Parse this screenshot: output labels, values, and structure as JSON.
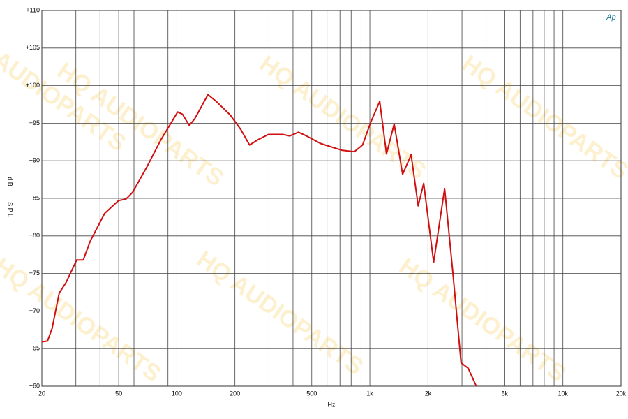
{
  "chart_data": {
    "type": "line",
    "log_x": true,
    "x_label": "Hz",
    "y_label_lines": [
      "d B",
      "S P L"
    ],
    "logo": "Ap",
    "watermark": "HQ AUDIOPARTS",
    "xlim": [
      20,
      20000
    ],
    "ylim": [
      60,
      110
    ],
    "xticks": [
      20,
      50,
      100,
      200,
      500,
      {
        "value": 1000,
        "label": "1k"
      },
      {
        "value": 2000,
        "label": "2k"
      },
      {
        "value": 5000,
        "label": "5k"
      },
      {
        "value": 10000,
        "label": "10k"
      },
      {
        "value": 20000,
        "label": "20k"
      }
    ],
    "xminor_ticks": [
      30,
      40,
      60,
      70,
      80,
      90,
      300,
      400,
      600,
      700,
      800,
      900,
      3000,
      4000,
      6000,
      7000,
      8000,
      9000
    ],
    "yticks": [
      {
        "value": 60,
        "label": "+60"
      },
      {
        "value": 65,
        "label": "+65"
      },
      {
        "value": 70,
        "label": "+70"
      },
      {
        "value": 75,
        "label": "+75"
      },
      {
        "value": 80,
        "label": "+80"
      },
      {
        "value": 85,
        "label": "+85"
      },
      {
        "value": 90,
        "label": "+90"
      },
      {
        "value": 95,
        "label": "+95"
      },
      {
        "value": 100,
        "label": "+100"
      },
      {
        "value": 105,
        "label": "+105"
      },
      {
        "value": 110,
        "label": "+110"
      }
    ],
    "grid": true,
    "series": [
      {
        "color": "#d01010",
        "x": [
          20,
          21.4,
          22.6,
          24.6,
          26.7,
          30.3,
          32.8,
          35.6,
          42.3,
          49.9,
          54.5,
          59,
          69.7,
          82.7,
          101,
          107,
          116,
          124,
          145,
          160,
          189,
          214,
          238,
          263,
          298,
          354,
          384,
          427,
          470,
          556,
          715,
          830,
          917,
          1010,
          1125,
          1220,
          1337,
          1478,
          1636,
          1780,
          1900,
          2140,
          2440,
          2690,
          2970,
          3230,
          3560
        ],
        "values": [
          65.9,
          66.0,
          67.7,
          72.4,
          73.8,
          76.8,
          76.8,
          79.3,
          83.0,
          84.7,
          84.9,
          85.8,
          89.1,
          92.8,
          96.5,
          96.2,
          94.7,
          95.6,
          98.8,
          97.9,
          96.1,
          94.2,
          92.1,
          92.8,
          93.5,
          93.5,
          93.3,
          93.8,
          93.3,
          92.3,
          91.4,
          91.2,
          92.1,
          95.1,
          97.9,
          90.9,
          94.9,
          88.2,
          90.8,
          84.0,
          87.0,
          76.5,
          86.3,
          75.2,
          63.1,
          62.4,
          60.0
        ]
      }
    ]
  }
}
